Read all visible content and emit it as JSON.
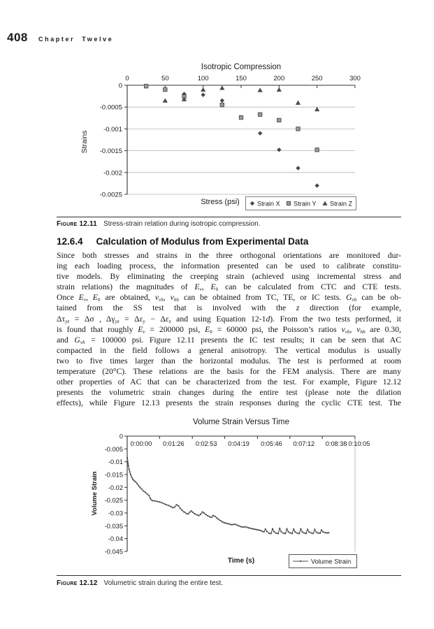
{
  "page": {
    "number": "408",
    "chapter": "Chapter Twelve"
  },
  "figure_12_11": {
    "label": "Figure 12.11",
    "caption": "Stress-strain relation during isotropic compression."
  },
  "section": {
    "number": "12.6.4",
    "title": "Calculation of Modulus from Experimental Data"
  },
  "body": {
    "lines": [
      "Since both stresses and strains in the three orthogonal orientations are monitored dur-",
      "ing each loading process, the information presented can be used to calibrate constitu-",
      "tive models. By eliminating the creeping strain (achieved using incremental stress and",
      "strain relations) the magnitudes of <i>E</i><sub>v</sub>, <i>E</i><sub>h</sub> can be calculated from CTC and CTE tests.",
      "Once <i>E</i><sub>v</sub>, <i>E</i><sub>h</sub> are obtained, <i>ν</i><sub>vh</sub>, <i>ν</i><sub>hh</sub> can be obtained from TC, TE, or IC tests. <i>G</i><sub>vh</sub> can be ob-",
      "tained from the SS test that is involved with the <i>z</i> direction (for example,",
      "Δτ<sub>yz</sub> = Δσ , Δγ<sub>yz</sub> = Δε<sub>y</sub> − Δε<sub>z</sub> and using Equation 12-1<i>d</i>). From the two tests performed, it",
      "is found that roughly <i>E</i><sub>v</sub> = 200000 psi, <i>E</i><sub>h</sub> = 60000 psi, the Poisson’s ratios <i>ν</i><sub>vh</sub>, <i>ν</i><sub>hh</sub> are 0.30,",
      "and <i>G</i><sub>vh</sub> = 100000 psi. Figure 12.11 presents the IC test results; it can be seen that AC",
      "compacted in the field follows a general anisotropy. The vertical modulus is usually",
      "two to five times larger than the horizontal modulus. The test is performed at room",
      "temperature (20°C). These relations are the basis for the FEM analysis. There are many",
      "other properties of AC that can be characterized from the test. For example, Figure 12.12",
      "presents the volumetric strain changes during the entire test (please note the dilation",
      "effects), while Figure 12.13 presents the strain responses during the cyclic CTE test. The"
    ]
  },
  "figure_12_12": {
    "label": "Figure 12.12",
    "caption": "Volumetric strain during the entire test."
  },
  "colors": {
    "axis": "#333333",
    "grid": "#b3b3b3",
    "marker_dark": "#4a4a4a",
    "marker_square_fill": "#9a9a9a",
    "curve": "#4d4d4d",
    "legend_border": "#808080"
  },
  "chart_data": [
    {
      "type": "scatter",
      "title": "Isotropic Compression",
      "xlabel": "Stress (psi)",
      "ylabel": "Strains",
      "xlim": [
        0,
        300
      ],
      "ylim": [
        -0.0025,
        0
      ],
      "x_ticks": [
        0,
        50,
        100,
        150,
        200,
        250,
        300
      ],
      "y_ticks": [
        0,
        -0.0005,
        -0.001,
        -0.0015,
        -0.002,
        -0.0025
      ],
      "y_tick_labels": [
        "0",
        "-0.0005",
        "-0.001",
        "-0.0015",
        "-0.002",
        "-0.0025"
      ],
      "grid": "horizontal",
      "legend_position": "bottom-right",
      "series": [
        {
          "name": "Strain X",
          "marker": "diamond",
          "points": [
            [
              75,
              -0.0002
            ],
            [
              100,
              -0.00022
            ],
            [
              125,
              -0.00035
            ],
            [
              175,
              -0.0011
            ],
            [
              200,
              -0.00148
            ],
            [
              225,
              -0.0019
            ],
            [
              250,
              -0.0023
            ]
          ]
        },
        {
          "name": "Strain Y",
          "marker": "square",
          "points": [
            [
              25,
              -2e-05
            ],
            [
              50,
              -0.0001
            ],
            [
              75,
              -0.00026
            ],
            [
              125,
              -0.00045
            ],
            [
              150,
              -0.00074
            ],
            [
              175,
              -0.00067
            ],
            [
              200,
              -0.0008
            ],
            [
              225,
              -0.001
            ],
            [
              250,
              -0.00148
            ]
          ]
        },
        {
          "name": "Strain Z",
          "marker": "triangle",
          "points": [
            [
              50,
              -0.00035
            ],
            [
              75,
              -0.00032
            ],
            [
              100,
              -0.0001
            ],
            [
              125,
              -6e-05
            ],
            [
              175,
              -0.00011
            ],
            [
              200,
              -0.0001
            ],
            [
              225,
              -0.0004
            ],
            [
              250,
              -0.00055
            ]
          ]
        }
      ]
    },
    {
      "type": "line",
      "title": "Volume Strain Versus Time",
      "xlabel": "Time (s)",
      "ylabel": "Volume Strain",
      "xlim_seconds": [
        0,
        605
      ],
      "ylim": [
        -0.045,
        0
      ],
      "x_tick_labels": [
        "0:00:00",
        "0:01:26",
        "0:02:53",
        "0:04:19",
        "0:05:46",
        "0:07:12",
        "0:08:38",
        "0:10:05"
      ],
      "x_tick_seconds": [
        0,
        86,
        173,
        259,
        346,
        432,
        518,
        605
      ],
      "y_ticks": [
        0,
        -0.005,
        -0.01,
        -0.015,
        -0.02,
        -0.025,
        -0.03,
        -0.035,
        -0.04,
        -0.045
      ],
      "y_tick_labels": [
        "0",
        "-0.005",
        "-0.01",
        "-0.015",
        "-0.02",
        "-0.025",
        "-0.03",
        "-0.035",
        "-0.04",
        "-0.045"
      ],
      "grid": "off",
      "legend_position": "bottom-right",
      "series": [
        {
          "name": "Volume Strain",
          "marker": "dash",
          "points": [
            [
              0,
              -0.0085
            ],
            [
              1,
              -0.0095
            ],
            [
              2,
              -0.0105
            ],
            [
              3,
              -0.0115
            ],
            [
              5,
              -0.013
            ],
            [
              7,
              -0.014
            ],
            [
              9,
              -0.015
            ],
            [
              12,
              -0.016
            ],
            [
              15,
              -0.0168
            ],
            [
              18,
              -0.0174
            ],
            [
              22,
              -0.0178
            ],
            [
              26,
              -0.0185
            ],
            [
              30,
              -0.0193
            ],
            [
              34,
              -0.02
            ],
            [
              38,
              -0.0206
            ],
            [
              43,
              -0.0214
            ],
            [
              48,
              -0.0219
            ],
            [
              53,
              -0.0226
            ],
            [
              58,
              -0.0232
            ],
            [
              61,
              -0.0243
            ],
            [
              64,
              -0.0249
            ],
            [
              68,
              -0.0252
            ],
            [
              74,
              -0.0253
            ],
            [
              80,
              -0.0255
            ],
            [
              86,
              -0.0257
            ],
            [
              92,
              -0.026
            ],
            [
              98,
              -0.0264
            ],
            [
              104,
              -0.0268
            ],
            [
              110,
              -0.0271
            ],
            [
              116,
              -0.0275
            ],
            [
              121,
              -0.0279
            ],
            [
              126,
              -0.0277
            ],
            [
              131,
              -0.0268
            ],
            [
              136,
              -0.0272
            ],
            [
              141,
              -0.0282
            ],
            [
              146,
              -0.029
            ],
            [
              151,
              -0.0296
            ],
            [
              157,
              -0.0302
            ],
            [
              162,
              -0.0304
            ],
            [
              166,
              -0.0297
            ],
            [
              170,
              -0.0292
            ],
            [
              174,
              -0.0297
            ],
            [
              179,
              -0.0303
            ],
            [
              185,
              -0.0307
            ],
            [
              190,
              -0.031
            ],
            [
              195,
              -0.0305
            ],
            [
              200,
              -0.0296
            ],
            [
              204,
              -0.03
            ],
            [
              209,
              -0.0306
            ],
            [
              214,
              -0.0311
            ],
            [
              219,
              -0.0315
            ],
            [
              224,
              -0.0317
            ],
            [
              228,
              -0.031
            ],
            [
              233,
              -0.0313
            ],
            [
              238,
              -0.0319
            ],
            [
              243,
              -0.0325
            ],
            [
              248,
              -0.033
            ],
            [
              253,
              -0.0335
            ],
            [
              258,
              -0.0338
            ],
            [
              263,
              -0.034
            ],
            [
              268,
              -0.0342
            ],
            [
              273,
              -0.0344
            ],
            [
              278,
              -0.0346
            ],
            [
              283,
              -0.0344
            ],
            [
              288,
              -0.0345
            ],
            [
              293,
              -0.0348
            ],
            [
              298,
              -0.0351
            ],
            [
              303,
              -0.0354
            ],
            [
              308,
              -0.0355
            ],
            [
              313,
              -0.0354
            ],
            [
              318,
              -0.0356
            ],
            [
              323,
              -0.0358
            ],
            [
              328,
              -0.036
            ],
            [
              333,
              -0.0362
            ],
            [
              338,
              -0.0363
            ],
            [
              343,
              -0.0365
            ],
            [
              348,
              -0.0366
            ],
            [
              353,
              -0.0368
            ],
            [
              358,
              -0.0371
            ],
            [
              363,
              -0.0374
            ],
            [
              367,
              -0.0363
            ],
            [
              371,
              -0.0372
            ],
            [
              377,
              -0.0379
            ],
            [
              382,
              -0.038
            ],
            [
              386,
              -0.0362
            ],
            [
              390,
              -0.0373
            ],
            [
              396,
              -0.0379
            ],
            [
              401,
              -0.038
            ],
            [
              405,
              -0.036
            ],
            [
              409,
              -0.0373
            ],
            [
              415,
              -0.0379
            ],
            [
              420,
              -0.038
            ],
            [
              424,
              -0.0362
            ],
            [
              428,
              -0.0374
            ],
            [
              433,
              -0.0378
            ],
            [
              438,
              -0.038
            ],
            [
              442,
              -0.0363
            ],
            [
              446,
              -0.0374
            ],
            [
              452,
              -0.0379
            ],
            [
              457,
              -0.038
            ],
            [
              461,
              -0.0362
            ],
            [
              465,
              -0.0374
            ],
            [
              470,
              -0.0378
            ],
            [
              475,
              -0.038
            ],
            [
              479,
              -0.0364
            ],
            [
              483,
              -0.0374
            ],
            [
              489,
              -0.0378
            ],
            [
              494,
              -0.038
            ],
            [
              498,
              -0.0364
            ],
            [
              502,
              -0.0375
            ],
            [
              507,
              -0.0378
            ],
            [
              512,
              -0.0379
            ],
            [
              516,
              -0.0366
            ],
            [
              520,
              -0.0374
            ],
            [
              526,
              -0.0377
            ],
            [
              531,
              -0.0378
            ],
            [
              535,
              -0.0377
            ]
          ]
        }
      ]
    }
  ]
}
